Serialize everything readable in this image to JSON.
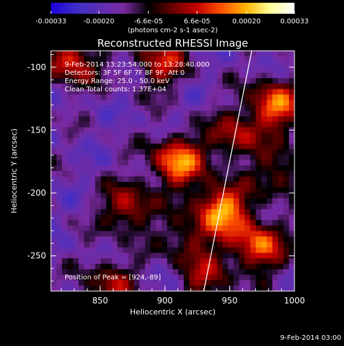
{
  "chart_data": {
    "type": "heatmap",
    "title": "Reconstructed RHESSI Image",
    "xlabel": "Heliocentric X (arcsec)",
    "ylabel": "Heliocentric Y (arcsec)",
    "xlim": [
      812,
      1000
    ],
    "ylim": [
      -278,
      -87
    ],
    "xticks": [
      "850",
      "900",
      "950",
      "1000"
    ],
    "yticks": [
      "-100",
      "-150",
      "-200",
      "-250"
    ],
    "colorbar": {
      "range": [
        -0.00033,
        0.00033
      ],
      "ticks": [
        "-0.00033",
        "-0.00020",
        "-6.6e-05",
        "6.6e-05",
        "0.00020",
        "0.00033"
      ],
      "label": "(photons cm-2 s-1 asec-2)",
      "stops": [
        "#1b00d8",
        "#3d2cc8",
        "#5c2fb4",
        "#7a2aa0",
        "#000000",
        "#6a0000",
        "#c40000",
        "#ff5200",
        "#ffb400",
        "#ffff9a",
        "#ffffff"
      ]
    },
    "annotations": [
      "9-Feb-2014 13:23:54.000 to 13:28:40.000",
      "Detectors: 3F 5F 6F 7F 8F 9F, Att 0",
      "Energy Range: 25.0 - 50.0 keV",
      "Clean     Total counts: 1.37E+04"
    ],
    "peak_label": "Position of Peak = [924,-89]",
    "limb_line": [
      [
        930,
        -278
      ],
      [
        967,
        -87
      ]
    ],
    "sources": [
      {
        "x": 910,
        "y": -175,
        "amp": 0.00033
      },
      {
        "x": 944,
        "y": -213,
        "amp": 0.00035
      },
      {
        "x": 985,
        "y": -130,
        "amp": 0.0003
      },
      {
        "x": 972,
        "y": -242,
        "amp": 0.0003
      },
      {
        "x": 828,
        "y": -95,
        "amp": 0.00025
      },
      {
        "x": 872,
        "y": -212,
        "amp": 0.00022
      },
      {
        "x": 858,
        "y": -272,
        "amp": 0.00018
      },
      {
        "x": 932,
        "y": -268,
        "amp": 0.00016
      },
      {
        "x": 897,
        "y": -96,
        "amp": 0.00022
      },
      {
        "x": 955,
        "y": -155,
        "amp": 0.0002
      },
      {
        "x": 918,
        "y": -238,
        "amp": 0.00015
      },
      {
        "x": 990,
        "y": -185,
        "amp": 0.00016
      }
    ]
  },
  "footer": {
    "timestamp": "9-Feb-2014 03:00"
  }
}
